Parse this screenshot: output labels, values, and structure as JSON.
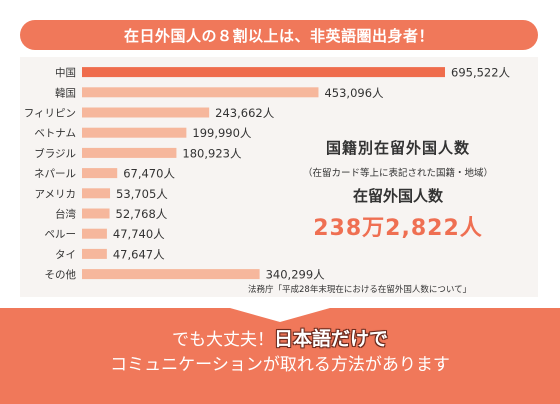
{
  "header": {
    "title": "在日外国人の８割以上は、非英語圏出身者！"
  },
  "summary": {
    "heading": "国籍別在留外国人数",
    "note": "（在留カード等上に表記された国籍・地域）",
    "label": "在留外国人数",
    "total": "238万2,822人"
  },
  "source": "法務庁「平成28年末現在における在留外国人数について」",
  "footer": {
    "line1_prefix": "でも大丈夫！",
    "line1_emph": "日本語だけで",
    "line2": "コミュニケーションが取れる方法があります"
  },
  "colors": {
    "highlight": "#ef6c4c",
    "bar": "#f6b79c",
    "accent": "#f0785a"
  },
  "chart_data": {
    "type": "bar",
    "orientation": "horizontal",
    "categories": [
      "中国",
      "韓国",
      "フィリピン",
      "ベトナム",
      "ブラジル",
      "ネパール",
      "アメリカ",
      "台湾",
      "ペルー",
      "タイ",
      "その他"
    ],
    "values": [
      695522,
      453096,
      243662,
      199990,
      180923,
      67470,
      53705,
      52768,
      47740,
      47647,
      340299
    ],
    "labels": [
      "695,522人",
      "453,096人",
      "243,662人",
      "199,990人",
      "180,923人",
      "67,470人",
      "53,705人",
      "52,768人",
      "47,740人",
      "47,647人",
      "340,299人"
    ],
    "highlight_index": 0,
    "xlim": [
      0,
      695522
    ]
  }
}
